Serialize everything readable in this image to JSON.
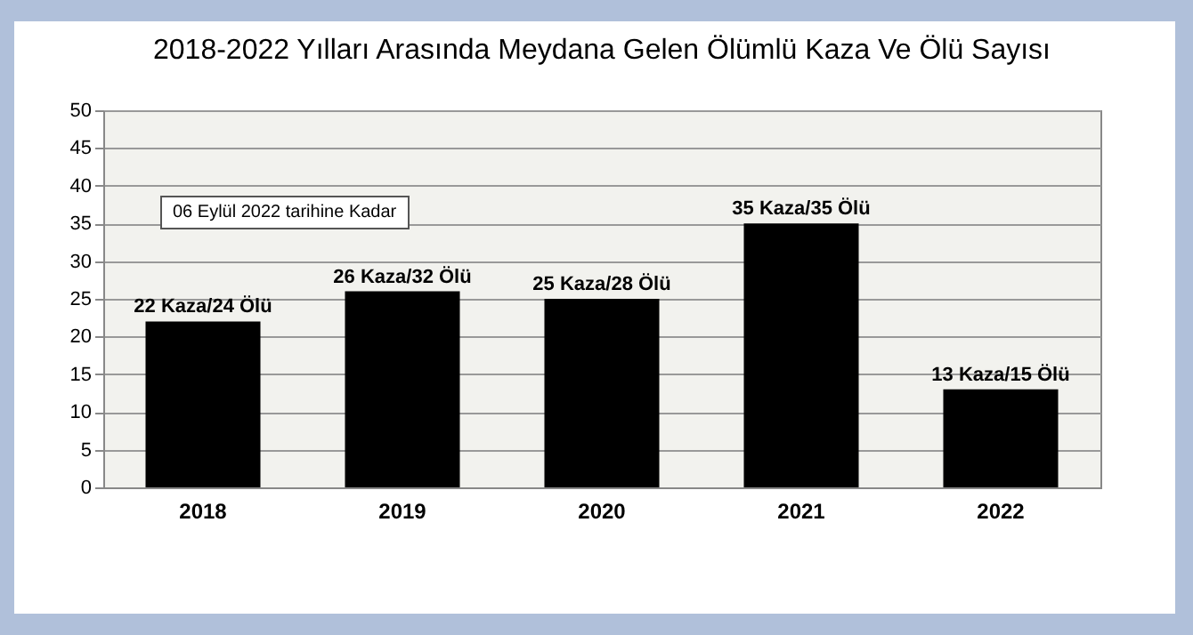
{
  "chart_data": {
    "type": "bar",
    "title": "2018-2022 Yılları Arasında Meydana Gelen Ölümlü Kaza Ve Ölü Sayısı",
    "categories": [
      "2018",
      "2019",
      "2020",
      "2021",
      "2022"
    ],
    "values": [
      22,
      26,
      25,
      35,
      13
    ],
    "value_labels": [
      "22 Kaza/24 Ölü",
      "26 Kaza/32 Ölü",
      "25 Kaza/28 Ölü",
      "35 Kaza/35 Ölü",
      "13 Kaza/15 Ölü"
    ],
    "color": "#000000",
    "ylim": [
      0,
      50
    ],
    "yticks": [
      0,
      5,
      10,
      15,
      20,
      25,
      30,
      35,
      40,
      45,
      50
    ],
    "grid": "y",
    "annotations": [
      "06 Eylül 2022 tarihine Kadar"
    ]
  }
}
